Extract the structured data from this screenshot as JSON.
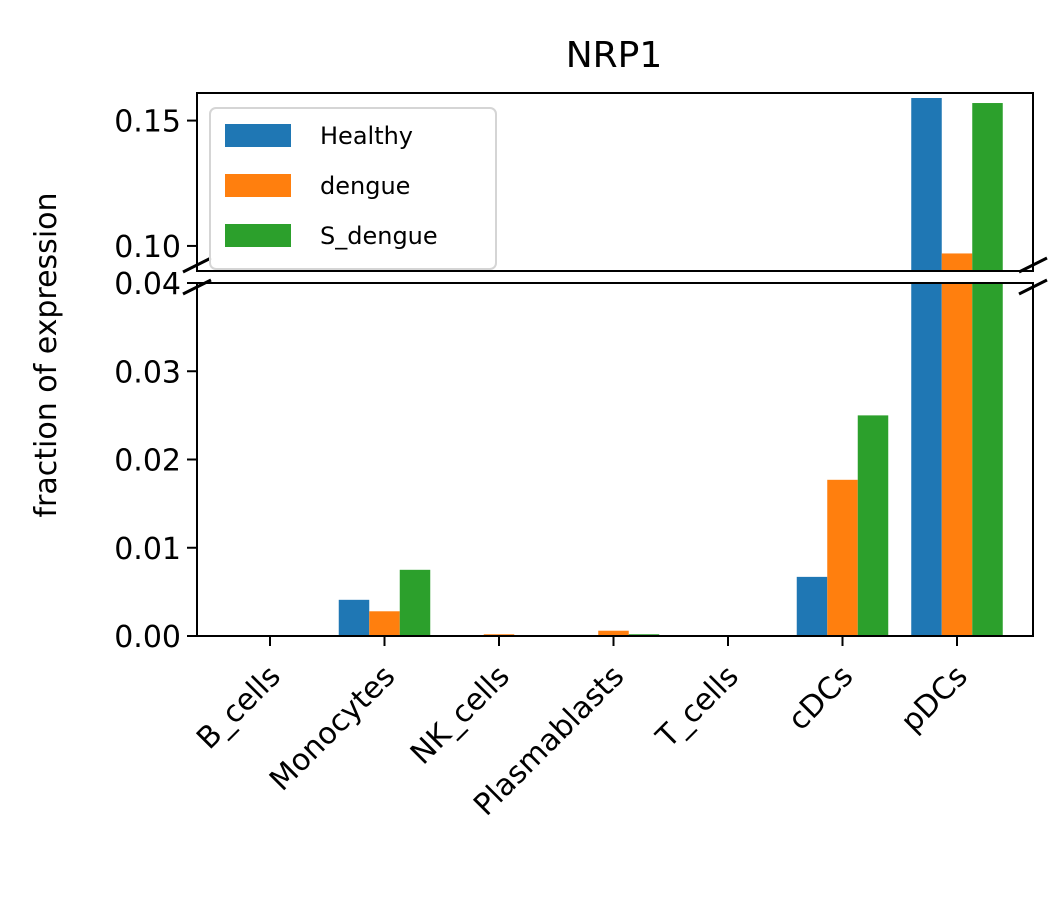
{
  "chart_data": {
    "type": "bar",
    "title": "NRP1",
    "xlabel": "",
    "ylabel": "fraction of expression",
    "categories": [
      "B_cells",
      "Monocytes",
      "NK_cells",
      "Plasmablasts",
      "T_cells",
      "cDCs",
      "pDCs"
    ],
    "series": [
      {
        "name": "Healthy",
        "color": "#1f77b4",
        "values": [
          0.0,
          0.0041,
          0.0,
          0.0,
          0.0,
          0.0067,
          0.159
        ]
      },
      {
        "name": "dengue",
        "color": "#ff7f0e",
        "values": [
          0.0,
          0.0028,
          0.0002,
          0.0006,
          0.0,
          0.0177,
          0.097
        ]
      },
      {
        "name": "S_dengue",
        "color": "#2ca02c",
        "values": [
          0.0,
          0.0075,
          0.0,
          0.0002,
          0.0,
          0.025,
          0.157
        ]
      }
    ],
    "broken_y_axis": true,
    "ylim_lower": [
      0.0,
      0.04
    ],
    "ylim_upper": [
      0.09,
      0.161
    ],
    "yticks_lower": [
      "0.00",
      "0.01",
      "0.02",
      "0.03",
      "0.04"
    ],
    "yticks_upper": [
      "0.10",
      "0.15"
    ],
    "legend": "top-left",
    "grid": false
  }
}
